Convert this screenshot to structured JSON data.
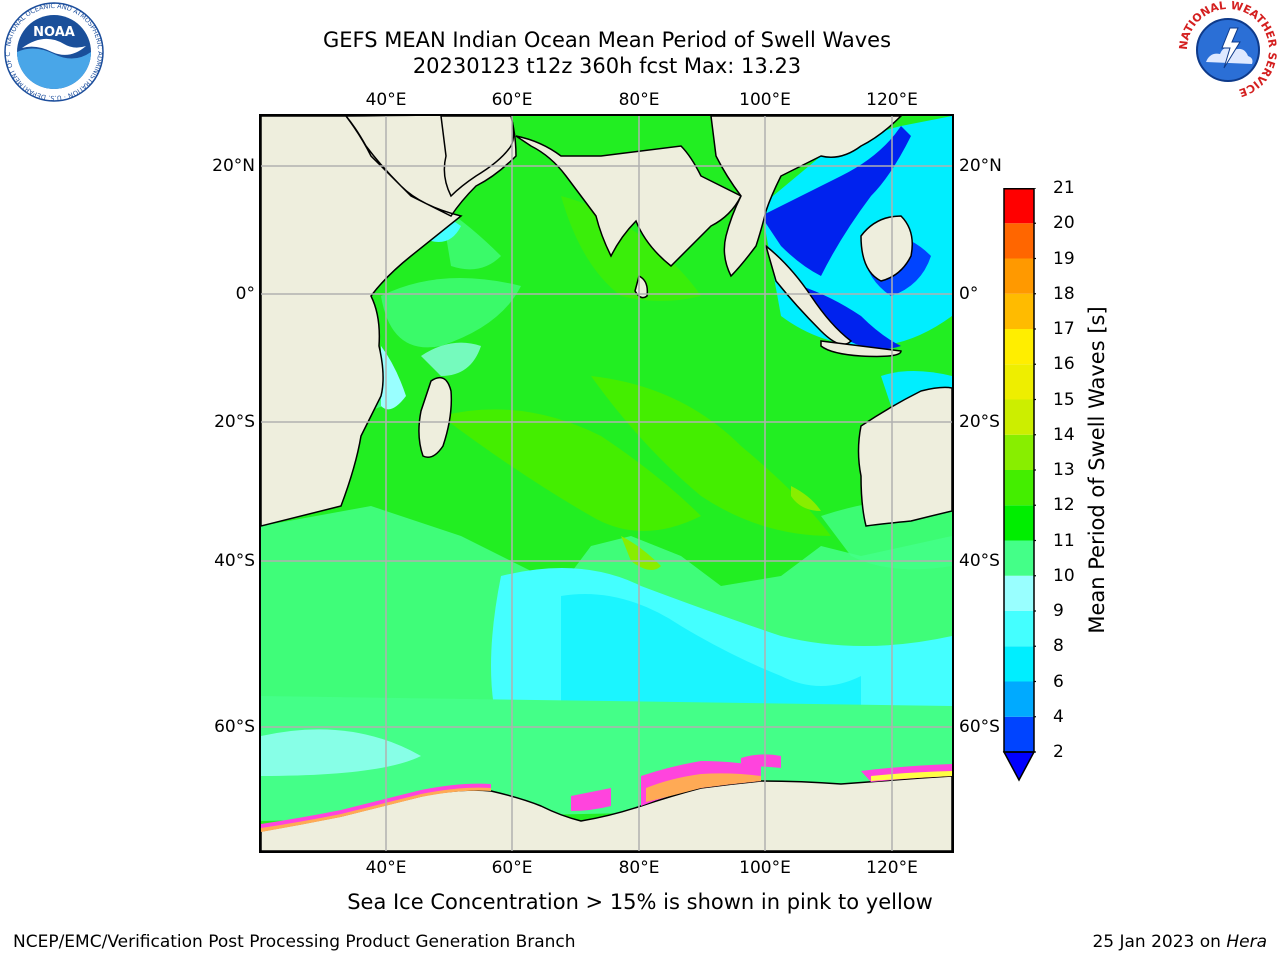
{
  "title": {
    "line1": "GEFS MEAN Indian Ocean Mean Period of Swell Waves",
    "line2": "20230123 t12z 360h fcst   Max: 13.23"
  },
  "map": {
    "lon_ticks": [
      "40°E",
      "60°E",
      "80°E",
      "100°E",
      "120°E"
    ],
    "lat_ticks": [
      "20°N",
      "0°",
      "20°S",
      "40°S",
      "60°S"
    ],
    "land_color": "#eeeedd",
    "ice_colors": [
      "#ff44dd",
      "#ffaa55",
      "#ffff44"
    ]
  },
  "colorbar": {
    "label": "Mean Period of Swell Waves [s]",
    "ticks": [
      "2",
      "4",
      "6",
      "8",
      "9",
      "10",
      "11",
      "12",
      "13",
      "14",
      "15",
      "16",
      "17",
      "18",
      "19",
      "20",
      "21"
    ],
    "colors": [
      "#0044ff",
      "#00aaff",
      "#00eeff",
      "#44ffff",
      "#99ffff",
      "#44ff88",
      "#00ee00",
      "#44ee00",
      "#88ee00",
      "#ccee00",
      "#eeee00",
      "#ffee00",
      "#ffbb00",
      "#ff9900",
      "#ff6600",
      "#ff3300",
      "#ff0000"
    ],
    "under_color": "#0000ff"
  },
  "caption": "Sea Ice Concentration > 15% is shown in pink to yellow",
  "footer": {
    "left": "NCEP/EMC/Verification Post Processing Product Generation Branch",
    "right_prefix": "25 Jan 2023 on ",
    "right_host": "Hera"
  },
  "logos": {
    "noaa": "NOAA",
    "noaa_ring": "NATIONAL OCEANIC AND ATMOSPHERIC ADMINISTRATION · U.S. DEPARTMENT OF COMMERCE",
    "nws_ring": "NATIONAL WEATHER SERVICE"
  }
}
